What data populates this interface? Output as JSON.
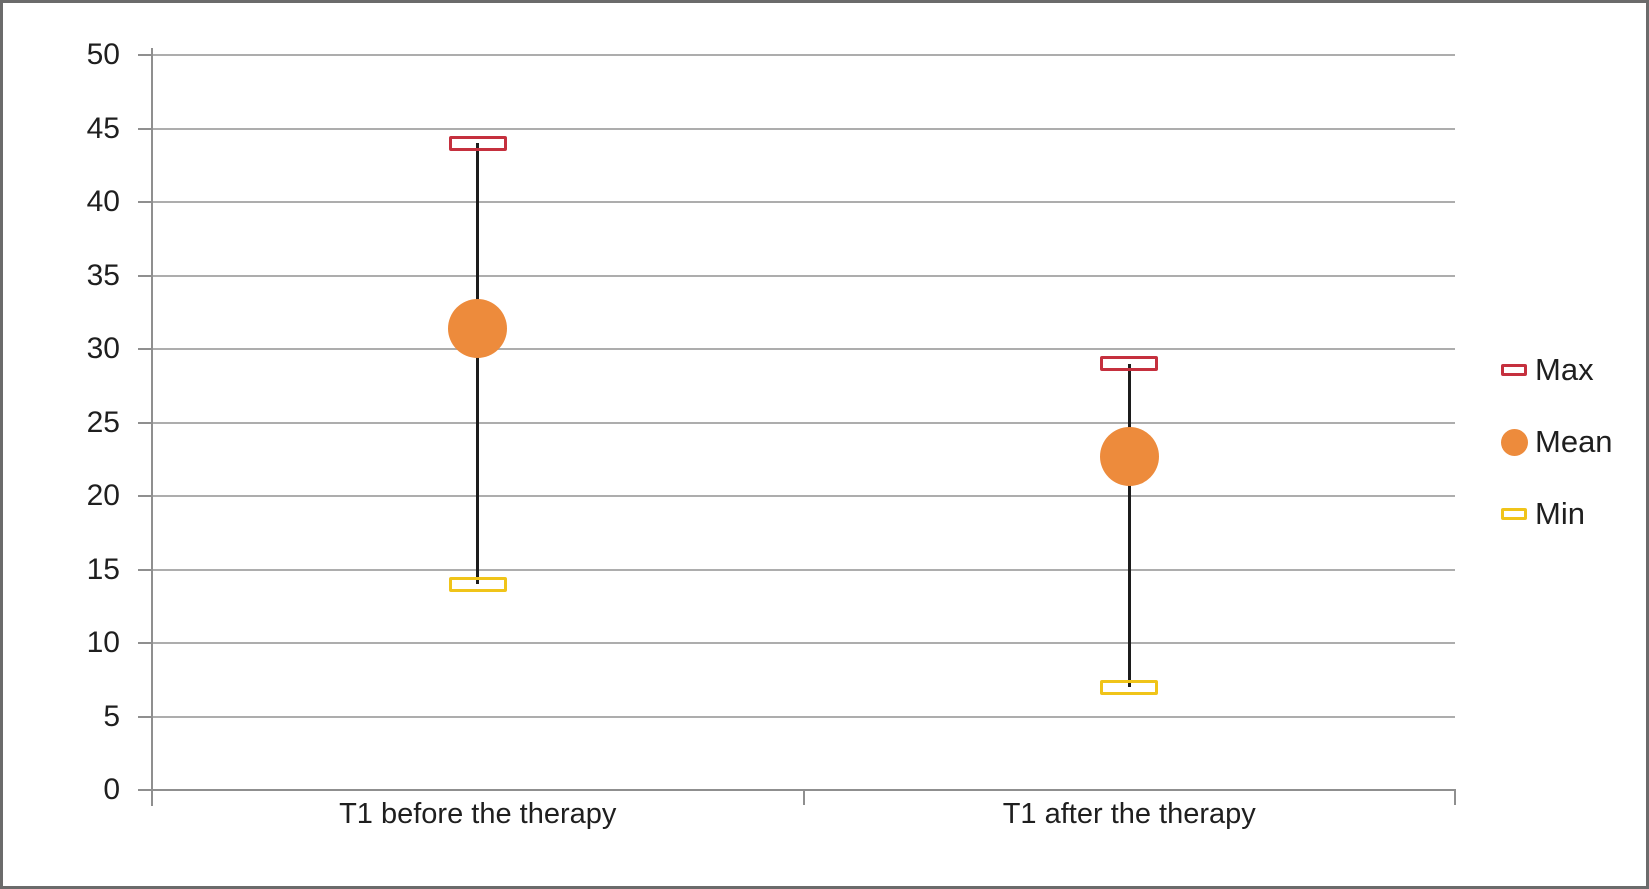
{
  "chart_data": {
    "type": "scatter",
    "subtype": "high-low-max-mean-min",
    "title": "",
    "xlabel": "",
    "ylabel": "",
    "categories": [
      "T1 before the therapy",
      "T1 after the therapy"
    ],
    "series": [
      {
        "name": "Max",
        "marker": "rect",
        "color": "#c5303e",
        "values": [
          44,
          29
        ]
      },
      {
        "name": "Mean",
        "marker": "circle",
        "color": "#ed8b3c",
        "values": [
          31.4,
          22.7
        ]
      },
      {
        "name": "Min",
        "marker": "rect",
        "color": "#f0c419",
        "values": [
          14,
          7
        ]
      }
    ],
    "ylim": [
      0,
      50
    ],
    "y_ticks": [
      0,
      5,
      10,
      15,
      20,
      25,
      30,
      35,
      40,
      45,
      50
    ],
    "grid": true,
    "legend_position": "right",
    "high_low_lines": true
  },
  "legend": {
    "items": [
      {
        "label": "Max",
        "marker": "rect",
        "color": "#c5303e"
      },
      {
        "label": "Mean",
        "marker": "circle",
        "color": "#ed8b3c"
      },
      {
        "label": "Min",
        "marker": "rect",
        "color": "#f0c419"
      }
    ]
  },
  "colors": {
    "gridline": "#adadad",
    "axis": "#8f8f8f",
    "high_low_line": "#1c1c1c",
    "text": "#1f1f1f",
    "frame_border": "#6b6b6b",
    "background": "#ffffff"
  }
}
